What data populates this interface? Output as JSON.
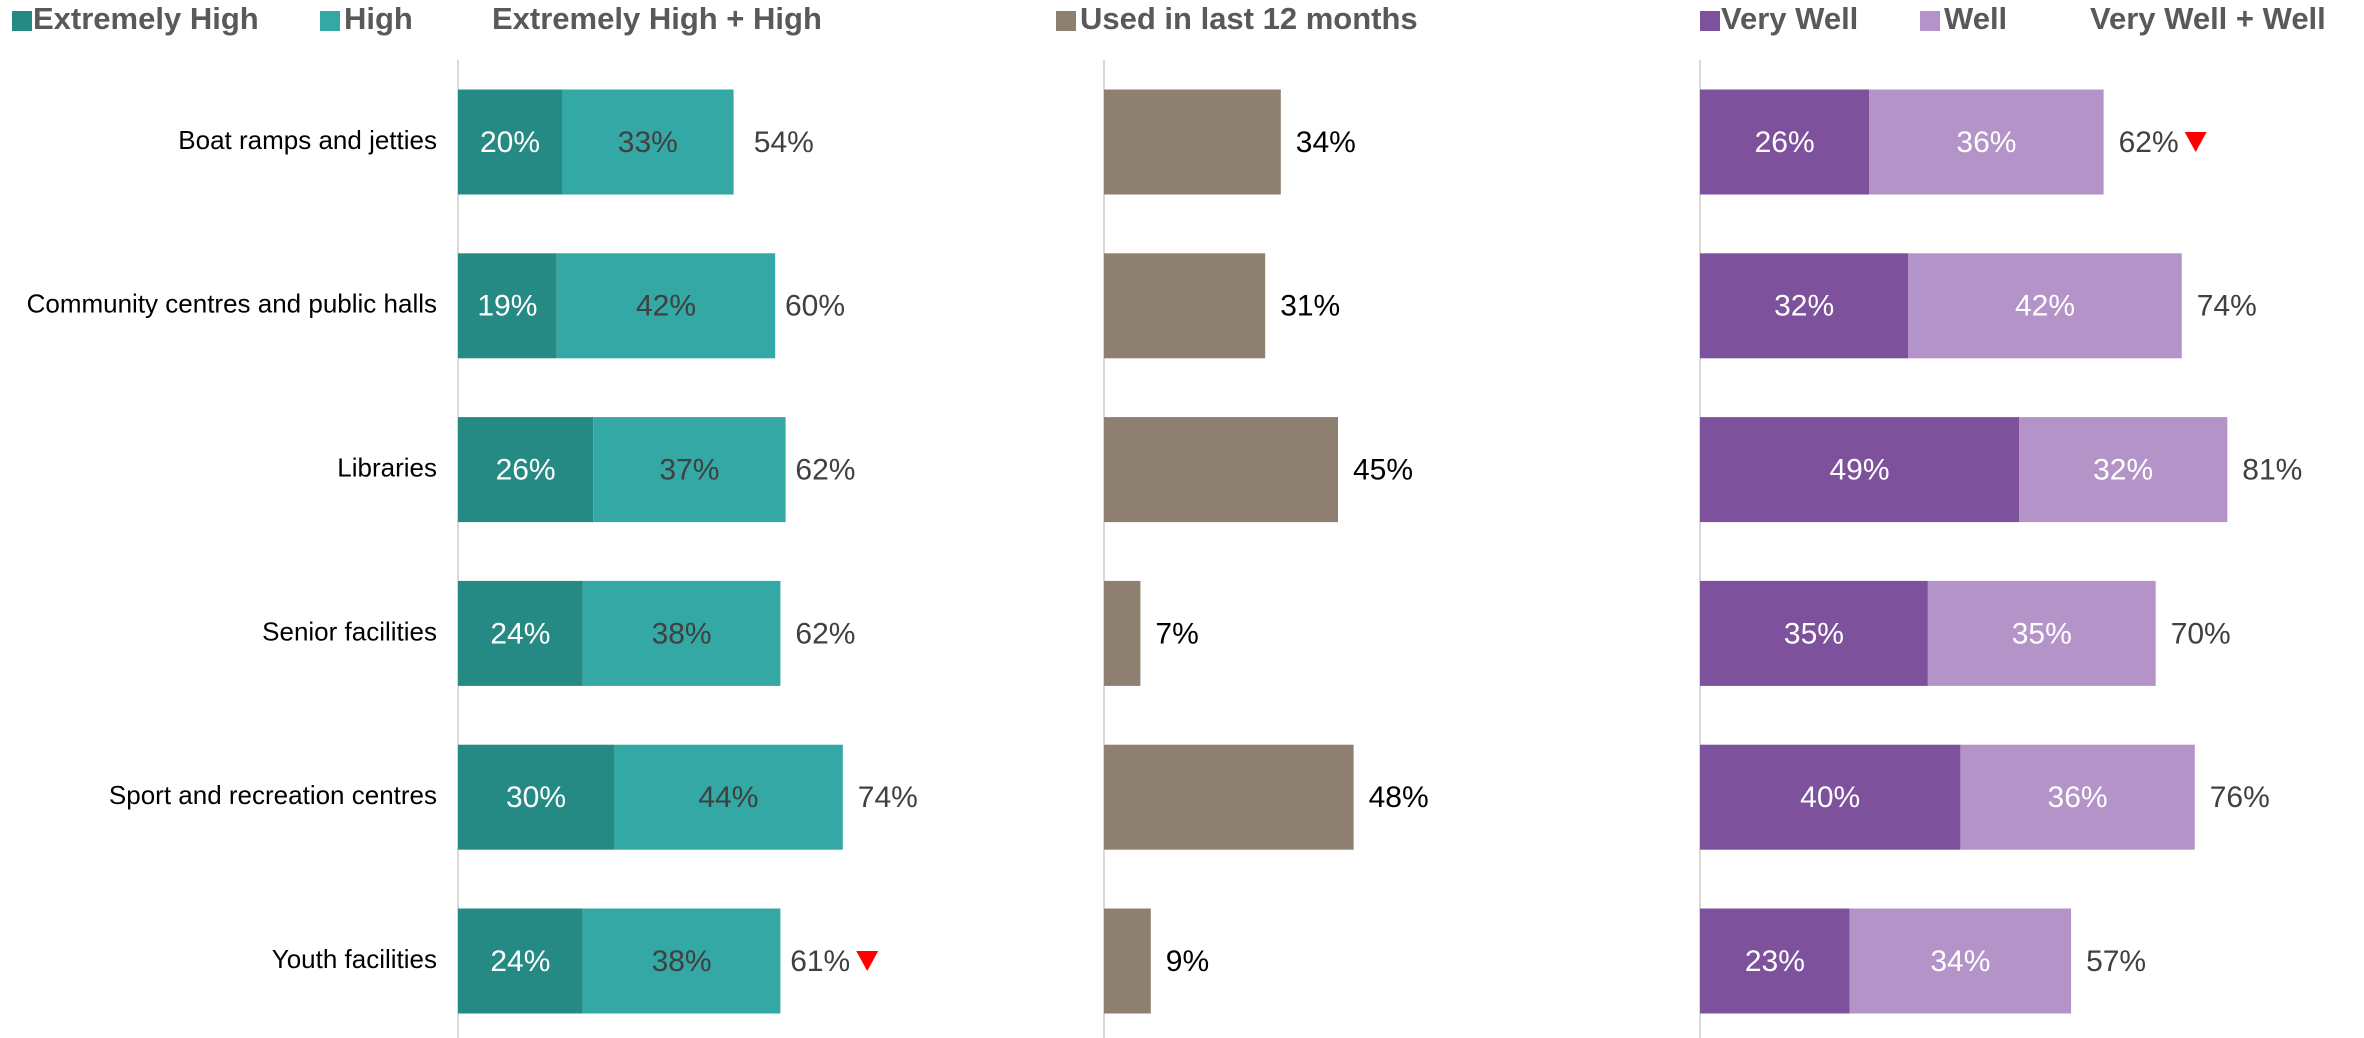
{
  "chart_data": [
    {
      "type": "bar",
      "orientation": "horizontal",
      "stacked": true,
      "categories": [
        "Boat ramps and jetties",
        "Community centres and public halls",
        "Libraries",
        "Senior facilities",
        "Sport and recreation centres",
        "Youth facilities"
      ],
      "xlim": [
        0,
        100
      ],
      "series": [
        {
          "name": "Extremely High",
          "color": "#268a84",
          "label_color": "#ffffff",
          "values": [
            20,
            19,
            26,
            24,
            30,
            24
          ],
          "value_labels": [
            "20%",
            "19%",
            "26%",
            "24%",
            "30%",
            "24%"
          ]
        },
        {
          "name": "High",
          "color": "#34a8a4",
          "label_color": "#404040",
          "values": [
            33,
            42,
            37,
            38,
            44,
            38
          ],
          "value_labels": [
            "33%",
            "42%",
            "37%",
            "38%",
            "44%",
            "38%"
          ]
        }
      ],
      "totals": {
        "name": "Extremely High + High",
        "label_color": "#404040",
        "values": [
          54,
          60,
          62,
          62,
          74,
          61
        ],
        "value_labels": [
          "54%",
          "60%",
          "62%",
          "62%",
          "74%",
          "61%"
        ]
      },
      "down_markers": {
        "color": "#ff0000",
        "values": [
          false,
          false,
          false,
          false,
          false,
          true
        ]
      }
    },
    {
      "type": "bar",
      "orientation": "horizontal",
      "stacked": true,
      "xlim": [
        0,
        100
      ],
      "series": [
        {
          "name": "Used in last 12 months",
          "color": "#8e8070",
          "label_color": "#000000",
          "label_outside": true,
          "values": [
            34,
            31,
            45,
            7,
            48,
            9
          ],
          "value_labels": [
            "34%",
            "31%",
            "45%",
            "7%",
            "48%",
            "9%"
          ]
        }
      ]
    },
    {
      "type": "bar",
      "orientation": "horizontal",
      "stacked": true,
      "xlim": [
        0,
        100
      ],
      "series": [
        {
          "name": "Very Well",
          "color": "#7d519b",
          "label_color": "#ffffff",
          "values": [
            26,
            32,
            49,
            35,
            40,
            23
          ],
          "value_labels": [
            "26%",
            "32%",
            "49%",
            "35%",
            "40%",
            "23%"
          ]
        },
        {
          "name": "Well",
          "color": "#b393c8",
          "label_color": "#ffffff",
          "values": [
            36,
            42,
            32,
            35,
            36,
            34
          ],
          "value_labels": [
            "36%",
            "42%",
            "32%",
            "35%",
            "36%",
            "34%"
          ]
        }
      ],
      "totals": {
        "name": "Very Well + Well",
        "label_color": "#404040",
        "values": [
          62,
          74,
          81,
          70,
          76,
          57
        ],
        "value_labels": [
          "62%",
          "74%",
          "81%",
          "70%",
          "76%",
          "57%"
        ]
      },
      "down_markers": {
        "color": "#ff0000",
        "values": [
          true,
          false,
          false,
          false,
          false,
          false
        ]
      }
    }
  ]
}
